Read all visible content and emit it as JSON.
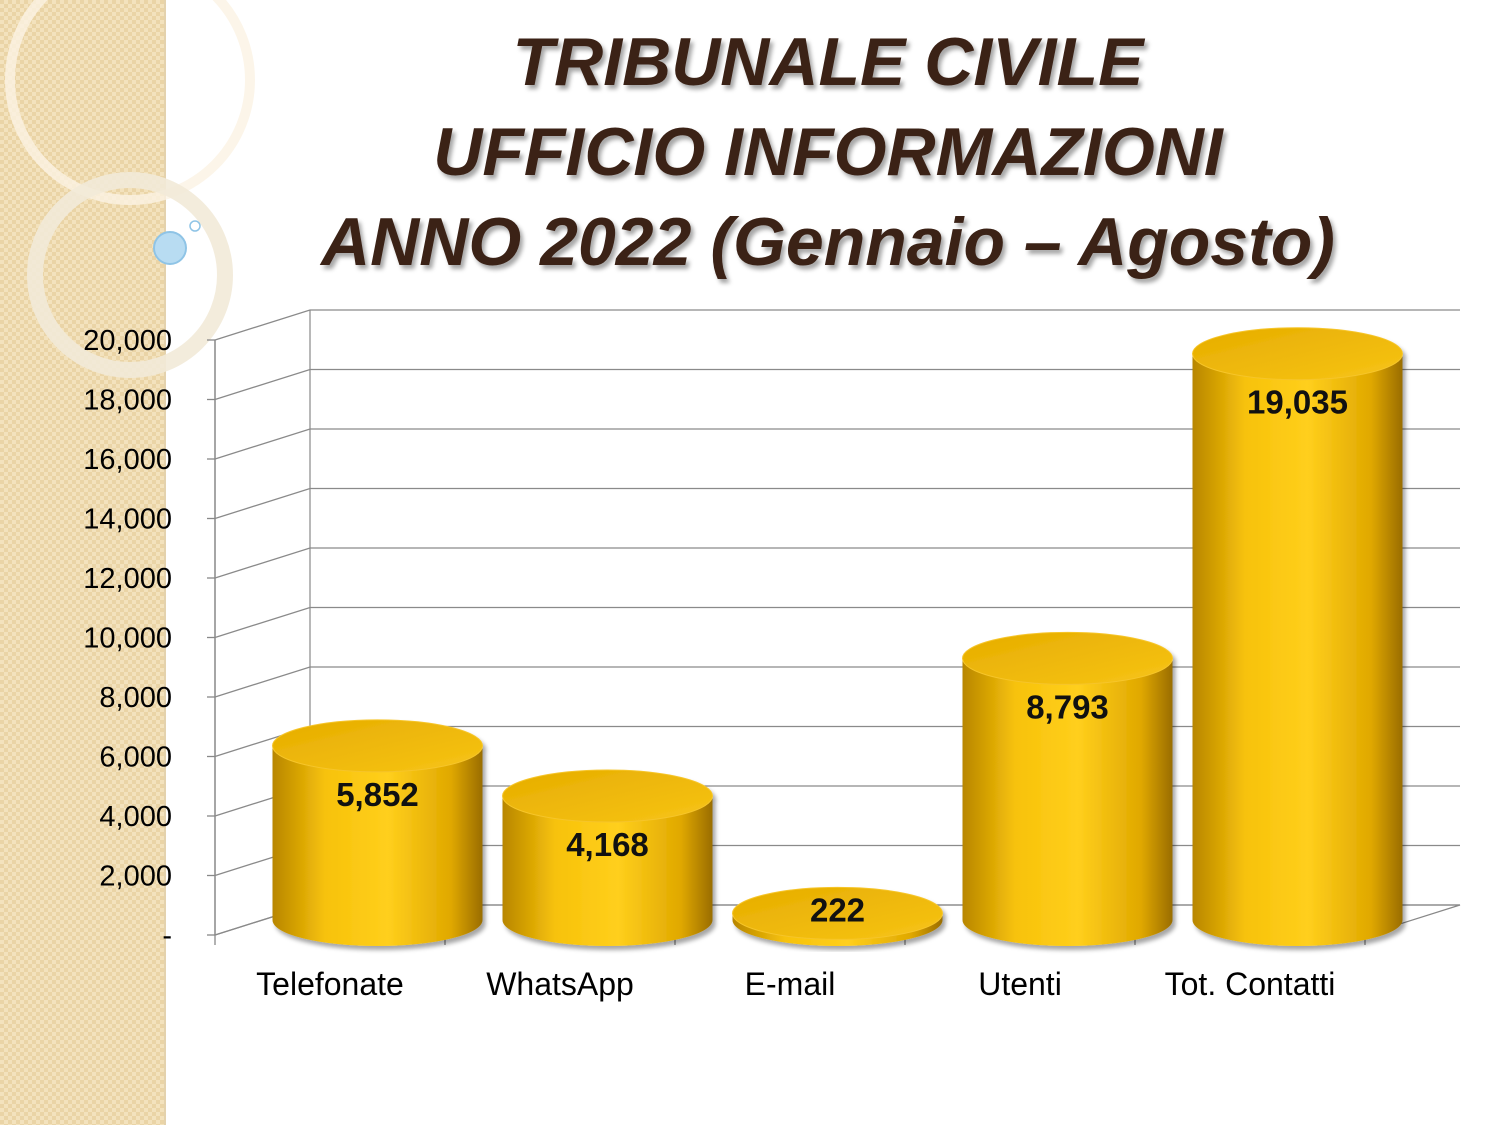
{
  "chart_data": {
    "type": "cylinder",
    "title": [
      "TRIBUNALE CIVILE",
      "UFFICIO INFORMAZIONI",
      "ANNO 2022 (Gennaio – Agosto)"
    ],
    "categories": [
      "Telefonate",
      "WhatsApp",
      "E-mail",
      "Utenti",
      "Tot. Contatti"
    ],
    "values": [
      5852,
      4168,
      222,
      8793,
      19035
    ],
    "value_labels": [
      "5,852",
      "4,168",
      "222",
      "8,793",
      "19,035"
    ],
    "color": "#f2b800",
    "ylim": [
      0,
      20000
    ],
    "yticks": [
      {
        "value": 0,
        "label": "-"
      },
      {
        "value": 2000,
        "label": "2,000"
      },
      {
        "value": 4000,
        "label": "4,000"
      },
      {
        "value": 6000,
        "label": "6,000"
      },
      {
        "value": 8000,
        "label": "8,000"
      },
      {
        "value": 10000,
        "label": "10,000"
      },
      {
        "value": 12000,
        "label": "12,000"
      },
      {
        "value": 14000,
        "label": "14,000"
      },
      {
        "value": 16000,
        "label": "16,000"
      },
      {
        "value": 18000,
        "label": "18,000"
      },
      {
        "value": 20000,
        "label": "20,000"
      }
    ],
    "grid": true
  }
}
